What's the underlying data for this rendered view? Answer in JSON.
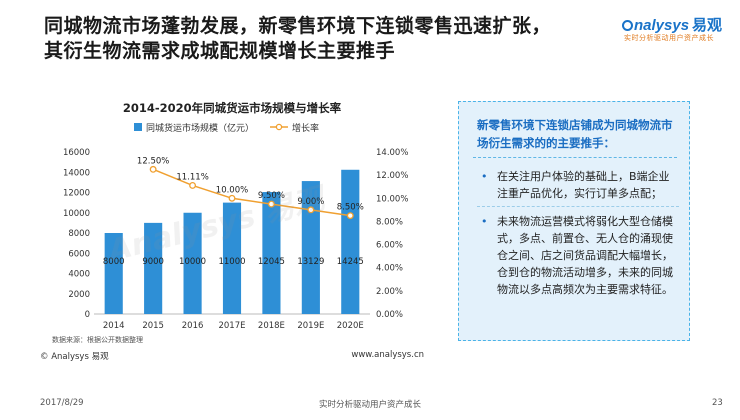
{
  "slide": {
    "title_line1": "同城物流市场蓬勃发展，新零售环境下连锁零售迅速扩张，",
    "title_line2": "其衍生物流需求成城配规模增长主要推手"
  },
  "logo": {
    "brand": "nalysys",
    "brand_cn": "易观",
    "slogan": "实时分析驱动用户资产成长"
  },
  "chart_data": {
    "type": "bar",
    "title": "2014-2020年同城货运市场规模与增长率",
    "categories": [
      "2014",
      "2015",
      "2016",
      "2017E",
      "2018E",
      "2019E",
      "2020E"
    ],
    "series": [
      {
        "name": "同城货运市场规模（亿元）",
        "type": "bar",
        "axis": "left",
        "color": "#2e8fd6",
        "values": [
          8000,
          9000,
          10000,
          11000,
          12045,
          13129,
          14245
        ],
        "labels": [
          "8000",
          "9000",
          "10000",
          "11000",
          "12045",
          "13129",
          "14245"
        ]
      },
      {
        "name": "增长率",
        "type": "line",
        "axis": "right",
        "color": "#f0a030",
        "values": [
          null,
          12.5,
          11.11,
          10.0,
          9.5,
          9.0,
          8.5
        ],
        "labels": [
          "",
          "12.50%",
          "11.11%",
          "10.00%",
          "9.50%",
          "9.00%",
          "8.50%"
        ]
      }
    ],
    "y_left": {
      "range": [
        0,
        16000
      ],
      "ticks": [
        "0",
        "2000",
        "4000",
        "6000",
        "8000",
        "10000",
        "12000",
        "14000",
        "16000"
      ]
    },
    "y_right": {
      "range": [
        0,
        14
      ],
      "ticks": [
        "0.00%",
        "2.00%",
        "4.00%",
        "6.00%",
        "8.00%",
        "10.00%",
        "12.00%",
        "14.00%"
      ]
    },
    "legend_position": "top",
    "grid": false,
    "source_note": "数据来源：根据公开数据整理",
    "watermark": "Analysys 易观"
  },
  "chart_footer": {
    "copyright": "© Analysys 易观",
    "url": "www.analysys.cn"
  },
  "panel": {
    "heading": "新零售环境下连锁店铺成为同城物流市场衍生需求的的主要推手：",
    "bullets": [
      "在关注用户体验的基础上，B端企业注重产品优化，实行订单多点配；",
      "未来物流运营模式将弱化大型仓储模式，多点、前置仓、无人仓的涌现使仓之间、店之间货品调配大幅增长，仓到仓的物流活动增多，未来的同城物流以多点高频次为主要需求特征。"
    ]
  },
  "page_footer": {
    "date": "2017/8/29",
    "slogan": "实时分析驱动用户资产成长",
    "page_number": "23"
  },
  "colors": {
    "title_accent": "#1a6dc2",
    "panel_bg": "#e3f1fb",
    "bar": "#2e8fd6",
    "line": "#f0a030"
  }
}
